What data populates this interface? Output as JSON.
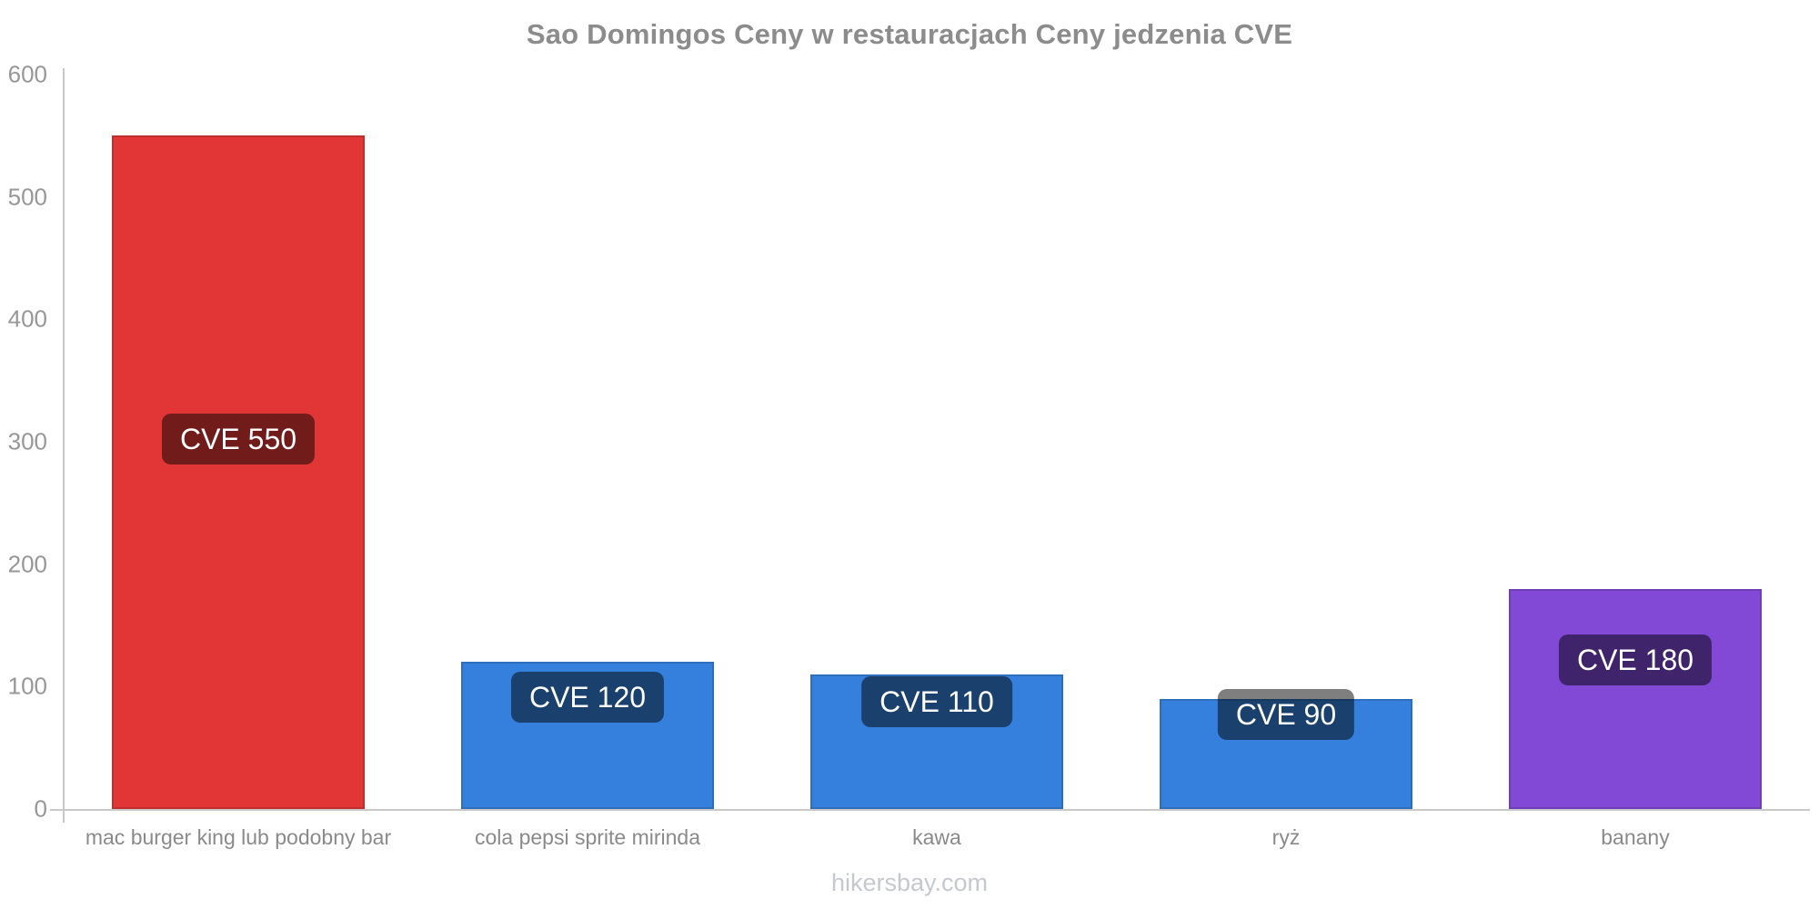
{
  "page": {
    "background": "#ffffff",
    "watermark": "hikersbay.com"
  },
  "chart_data": {
    "type": "bar",
    "title": "Sao Domingos Ceny w restauracjach Ceny jedzenia CVE",
    "categories": [
      "mac burger king lub podobny bar",
      "cola pepsi sprite mirinda",
      "kawa",
      "ryż",
      "banany"
    ],
    "values": [
      550,
      120,
      110,
      90,
      180
    ],
    "bar_labels": [
      "CVE 550",
      "CVE 120",
      "CVE 110",
      "CVE 90",
      "CVE 180"
    ],
    "bar_colors": [
      "#e23636",
      "#3580dd",
      "#3580dd",
      "#3580dd",
      "#8149d6"
    ],
    "currency": "CVE",
    "ylim": [
      0,
      600
    ],
    "yticks": [
      0,
      100,
      200,
      300,
      400,
      500,
      600
    ],
    "xlabel": "",
    "ylabel": "",
    "grid": false,
    "legend": false,
    "value_label_bg": "rgba(0,0,0,0.5)",
    "value_label_text_color": "#ffffff",
    "colors": {
      "title": "#8c8c8c",
      "axis_line": "#c9c9c9",
      "tick_label": "#979797",
      "category_label": "#8a8a8a",
      "watermark": "#c5c9ce"
    }
  }
}
